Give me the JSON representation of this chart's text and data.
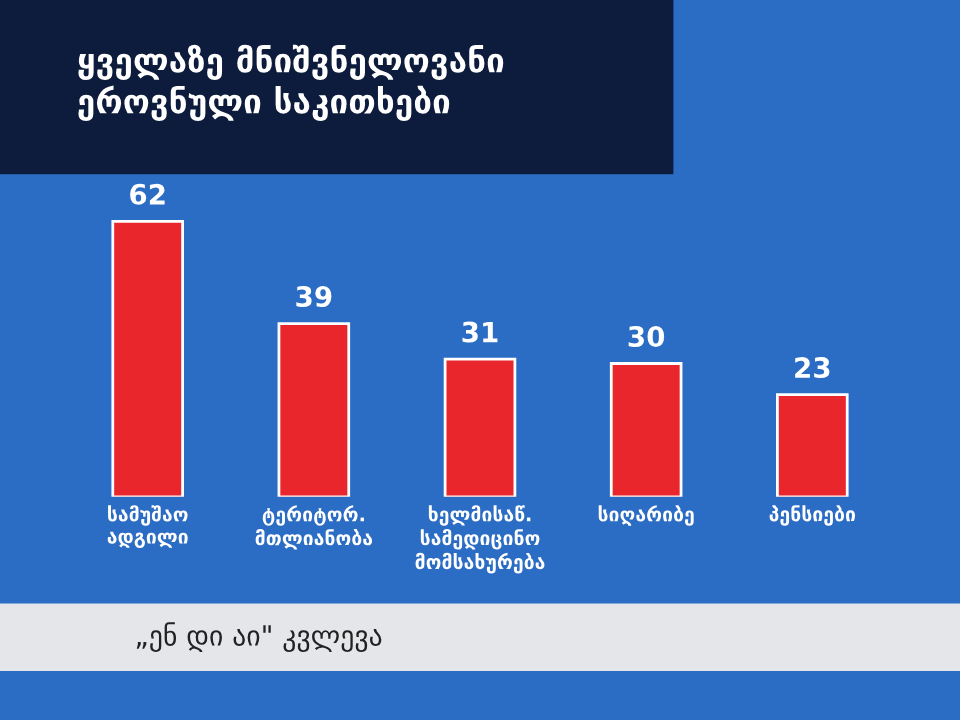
{
  "chart_data": {
    "type": "bar",
    "title": "ყველაზე მნიშვნელოვანი\nეროვნული საკითხები",
    "categories": [
      "სამუშაო\nადგილი",
      "ტერიტორ.\nმთლიანობა",
      "ხელმისაწ.\nსამედიცინო\nმომსახურება",
      "სიღარიბე",
      "პენსიები"
    ],
    "values": [
      62,
      39,
      31,
      30,
      23
    ],
    "color": "#e8262b",
    "data_labels": true,
    "annotations": [
      "„ენ დი აი\" კვლევა"
    ]
  }
}
